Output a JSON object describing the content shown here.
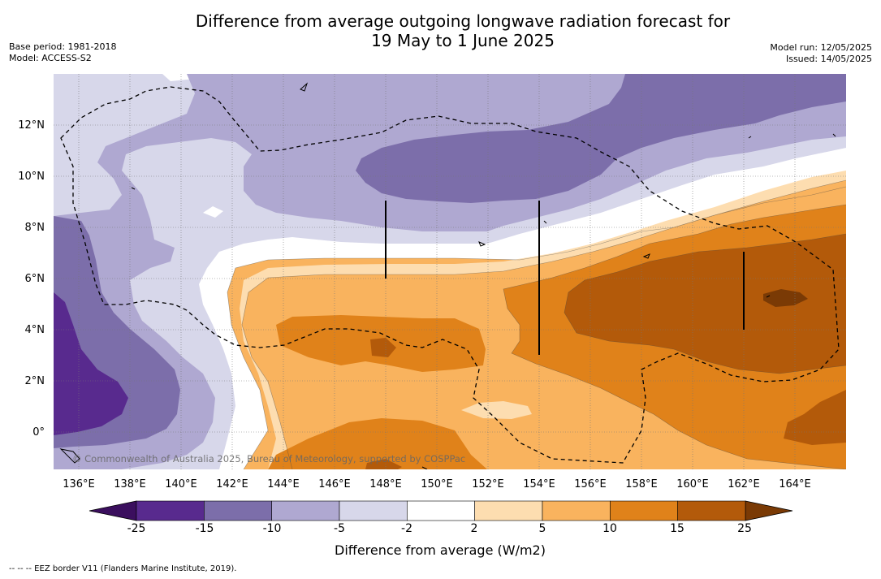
{
  "title_line1": "Difference from average outgoing longwave radiation forecast for",
  "title_line2": "19 May to 1 June 2025",
  "base_period": "Base period: 1981-2018",
  "model": "Model: ACCESS-S2",
  "model_run": "Model run: 12/05/2025",
  "issued": "Issued: 14/05/2025",
  "copyright": "© Commonwealth of Australia 2025, Bureau of Meteorology, supported by COSPPac",
  "footer": "-- -- -- EEZ border V11 (Flanders Marine Institute, 2019).",
  "lon_labels": [
    "136°E",
    "138°E",
    "140°E",
    "142°E",
    "144°E",
    "146°E",
    "148°E",
    "150°E",
    "152°E",
    "154°E",
    "156°E",
    "158°E",
    "160°E",
    "162°E",
    "164°E"
  ],
  "lat_labels": [
    "12°N",
    "10°N",
    "8°N",
    "6°N",
    "4°N",
    "2°N",
    "0°"
  ],
  "colorbar": {
    "title": "Difference from average (W/m2)",
    "ticks": [
      "-25",
      "-15",
      "-10",
      "-5",
      "-2",
      "2",
      "5",
      "10",
      "15",
      "25"
    ],
    "colors": [
      "#582a8e",
      "#7c6eaa",
      "#afa8d1",
      "#d7d7ea",
      "#ffffff",
      "#fdddb0",
      "#f9b35e",
      "#e0821a",
      "#b35a0a"
    ],
    "under_color": "#3b0f5e",
    "over_color": "#7a3a05"
  }
}
